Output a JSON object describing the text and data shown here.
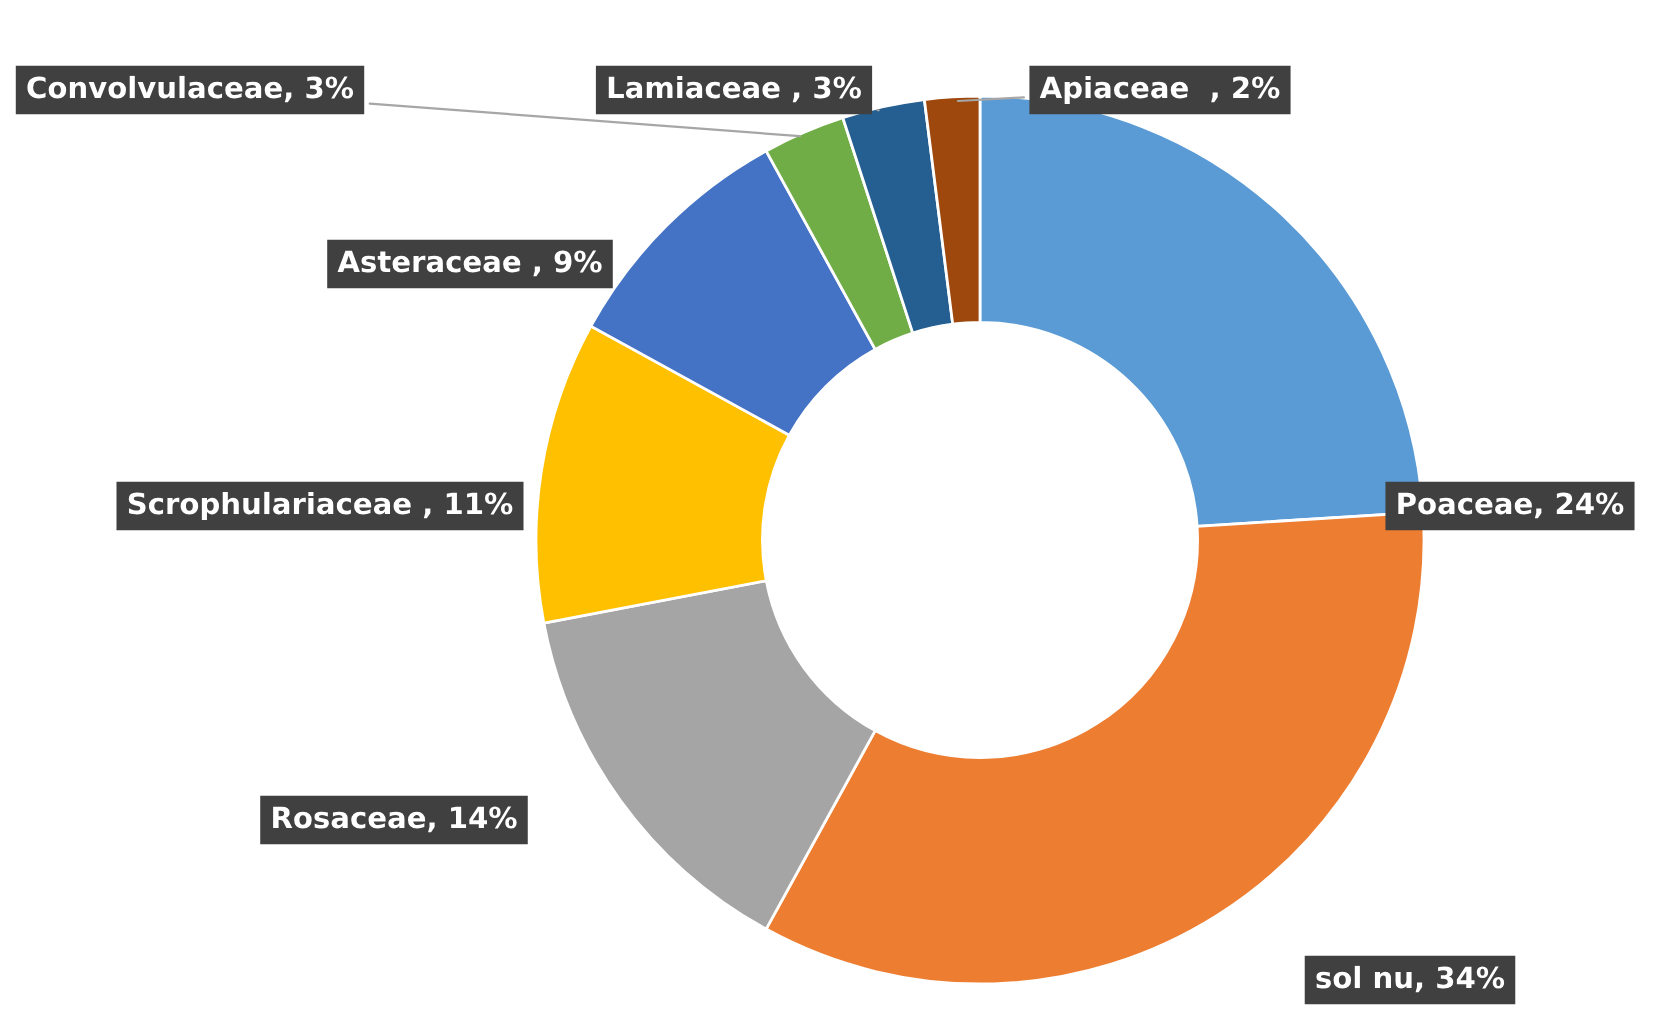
{
  "chart_data": {
    "type": "donut",
    "categories": [
      "Poaceae",
      "sol nu",
      "Rosaceae",
      "Scrophulariaceae ",
      "Asteraceae ",
      "Convolvulaceae",
      "Lamiaceae ",
      "Apiaceae  "
    ],
    "values": [
      24,
      34,
      14,
      11,
      9,
      3,
      3,
      2
    ],
    "colors": [
      "#5b9bd5",
      "#ed7d31",
      "#a5a5a5",
      "#ffc000",
      "#4472c4",
      "#70ad47",
      "#255e91",
      "#9e480e"
    ],
    "value_labels": [
      "24%",
      "34%",
      "14%",
      "11%",
      "9%",
      "3%",
      "3%",
      "2%"
    ],
    "legend": false
  }
}
